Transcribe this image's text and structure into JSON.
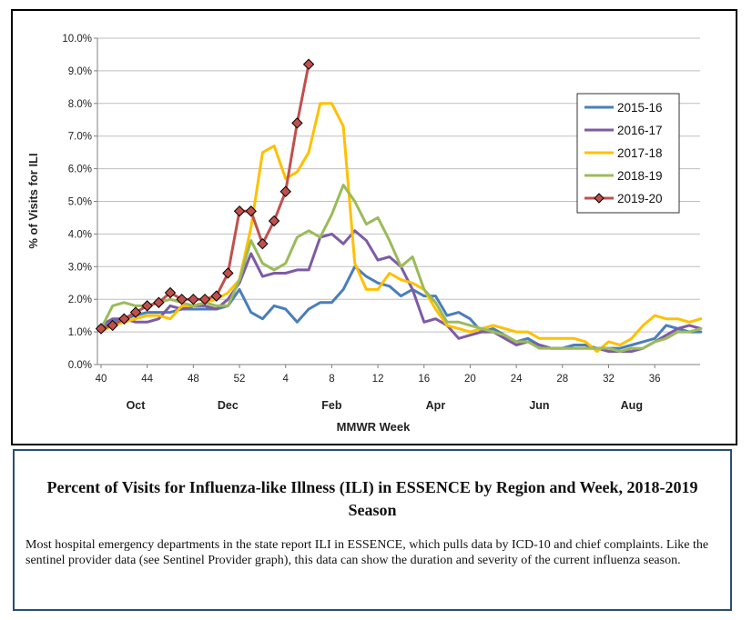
{
  "chart_data": {
    "type": "line",
    "xlabel": "MMWR Week",
    "ylabel": "% of Visits for ILI",
    "ylim": [
      0,
      10
    ],
    "y_ticks": [
      0,
      1,
      2,
      3,
      4,
      5,
      6,
      7,
      8,
      9,
      10
    ],
    "y_tick_labels": [
      "0.0%",
      "1.0%",
      "2.0%",
      "3.0%",
      "4.0%",
      "5.0%",
      "6.0%",
      "7.0%",
      "8.0%",
      "9.0%",
      "10.0%"
    ],
    "x_tick_labels": [
      "40",
      "44",
      "48",
      "52",
      "4",
      "8",
      "12",
      "16",
      "20",
      "24",
      "28",
      "32",
      "36"
    ],
    "month_labels": [
      {
        "label": "Oct",
        "week_index": 3
      },
      {
        "label": "Dec",
        "week_index": 11
      },
      {
        "label": "Feb",
        "week_index": 20
      },
      {
        "label": "Apr",
        "week_index": 29
      },
      {
        "label": "Jun",
        "week_index": 38
      },
      {
        "label": "Aug",
        "week_index": 46
      }
    ],
    "grid": "horizontal",
    "legend_position": "right",
    "series": [
      {
        "name": "2015-16",
        "color": "#4a7ebb",
        "marker": "none",
        "values": [
          1.1,
          1.3,
          1.4,
          1.5,
          1.6,
          1.6,
          1.6,
          1.7,
          1.7,
          1.7,
          1.7,
          1.8,
          2.3,
          1.6,
          1.4,
          1.8,
          1.7,
          1.3,
          1.7,
          1.9,
          1.9,
          2.3,
          3.0,
          2.7,
          2.5,
          2.4,
          2.1,
          2.3,
          2.1,
          2.1,
          1.5,
          1.6,
          1.4,
          1.0,
          1.1,
          0.9,
          0.7,
          0.8,
          0.6,
          0.5,
          0.5,
          0.6,
          0.6,
          0.5,
          0.5,
          0.5,
          0.6,
          0.7,
          0.8,
          1.2,
          1.1,
          1.0,
          1.0
        ]
      },
      {
        "name": "2016-17",
        "color": "#7d5ba6",
        "marker": "none",
        "values": [
          1.2,
          1.4,
          1.4,
          1.3,
          1.3,
          1.4,
          1.8,
          1.7,
          1.8,
          1.8,
          1.7,
          2.0,
          2.5,
          3.4,
          2.7,
          2.8,
          2.8,
          2.9,
          2.9,
          3.9,
          4.0,
          3.7,
          4.1,
          3.8,
          3.2,
          3.3,
          3.0,
          2.3,
          1.3,
          1.4,
          1.2,
          0.8,
          0.9,
          1.0,
          1.0,
          0.8,
          0.6,
          0.7,
          0.6,
          0.5,
          0.5,
          0.5,
          0.5,
          0.5,
          0.4,
          0.4,
          0.4,
          0.5,
          0.7,
          0.9,
          1.1,
          1.2,
          1.1
        ]
      },
      {
        "name": "2017-18",
        "color": "#ffc000",
        "marker": "none",
        "values": [
          1.0,
          1.2,
          1.3,
          1.4,
          1.5,
          1.5,
          1.4,
          1.8,
          1.8,
          1.9,
          2.0,
          2.2,
          2.6,
          4.2,
          6.5,
          6.7,
          5.7,
          5.9,
          6.5,
          8.0,
          8.0,
          7.3,
          3.1,
          2.3,
          2.3,
          2.8,
          2.6,
          2.5,
          2.3,
          1.7,
          1.2,
          1.1,
          1.0,
          1.1,
          1.2,
          1.1,
          1.0,
          1.0,
          0.8,
          0.8,
          0.8,
          0.8,
          0.7,
          0.4,
          0.7,
          0.6,
          0.8,
          1.2,
          1.5,
          1.4,
          1.4,
          1.3,
          1.4
        ]
      },
      {
        "name": "2018-19",
        "color": "#9bbb59",
        "marker": "none",
        "values": [
          1.1,
          1.8,
          1.9,
          1.8,
          1.8,
          1.9,
          2.0,
          1.9,
          1.8,
          1.9,
          1.8,
          1.8,
          2.6,
          3.8,
          3.1,
          2.9,
          3.1,
          3.9,
          4.1,
          3.9,
          4.6,
          5.5,
          5.0,
          4.3,
          4.5,
          3.8,
          3.0,
          3.3,
          2.3,
          1.9,
          1.3,
          1.3,
          1.2,
          1.1,
          1.0,
          0.9,
          0.7,
          0.7,
          0.5,
          0.5,
          0.5,
          0.5,
          0.5,
          0.5,
          0.5,
          0.4,
          0.5,
          0.5,
          0.7,
          0.8,
          1.0,
          1.0,
          1.1
        ]
      },
      {
        "name": "2019-20",
        "color": "#c0504d",
        "marker": "diamond",
        "values": [
          1.1,
          1.2,
          1.4,
          1.6,
          1.8,
          1.9,
          2.2,
          2.0,
          2.0,
          2.0,
          2.1,
          2.8,
          4.7,
          4.7,
          3.7,
          4.4,
          5.3,
          7.4,
          9.2
        ]
      }
    ]
  }
}
